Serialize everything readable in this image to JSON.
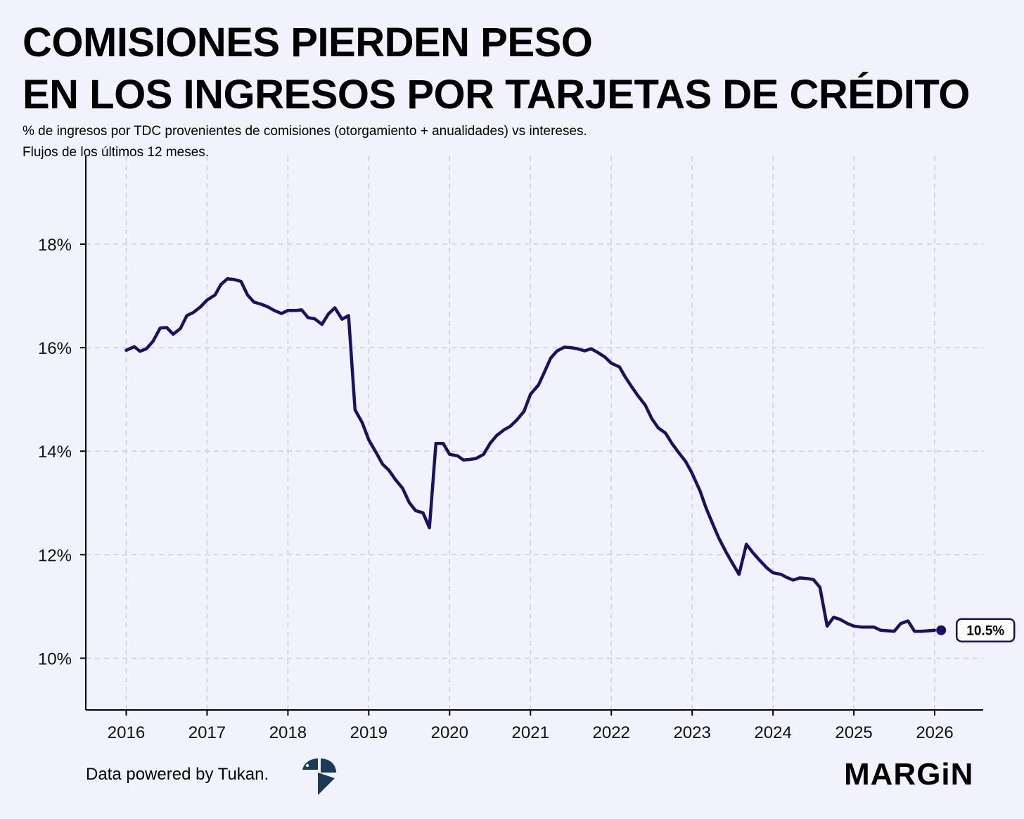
{
  "title": {
    "line1": "COMISIONES PIERDEN PESO",
    "line2": "EN LOS INGRESOS POR TARJETAS DE CRÉDITO"
  },
  "subtitle": {
    "line1": "% de ingresos por TDC provenientes de comisiones (otorgamiento + anualidades) vs intereses.",
    "line2": "Flujos de los últimos 12 meses."
  },
  "footer": {
    "credit": "Data powered by Tukan.",
    "brand": "MARGiN"
  },
  "colors": {
    "background": "#f2f2fc",
    "line": "#1c1060",
    "grid": "#c9cbf2",
    "axis": "#000000"
  },
  "chart_data": {
    "type": "line",
    "title": "",
    "xlabel": "",
    "ylabel": "",
    "xlim": [
      2015.5,
      2026.6
    ],
    "ylim": [
      9,
      19.7
    ],
    "x_ticks": [
      2016,
      2017,
      2018,
      2019,
      2020,
      2021,
      2022,
      2023,
      2024,
      2025,
      2026
    ],
    "y_ticks": [
      10,
      12,
      14,
      16,
      18
    ],
    "y_tick_labels": [
      "10%",
      "12%",
      "14%",
      "16%",
      "18%"
    ],
    "grid": true,
    "end_label": "10.5%",
    "end_point": {
      "x": 2026.08,
      "y": 10.54
    },
    "series": [
      {
        "x": [
          2016.0,
          2016.1,
          2016.17,
          2016.25,
          2016.33,
          2016.42,
          2016.5,
          2016.58,
          2016.67,
          2016.75,
          2016.83,
          2016.92,
          2017.0,
          2017.1,
          2017.17,
          2017.25,
          2017.33,
          2017.42,
          2017.5,
          2017.58,
          2017.67,
          2017.75,
          2017.83,
          2017.92,
          2018.0,
          2018.1,
          2018.17,
          2018.25,
          2018.33,
          2018.42,
          2018.5,
          2018.58,
          2018.67,
          2018.75,
          2018.83,
          2018.92,
          2019.0,
          2019.1,
          2019.17,
          2019.25,
          2019.33,
          2019.42,
          2019.5,
          2019.58,
          2019.67,
          2019.75,
          2019.83,
          2019.92,
          2020.0,
          2020.1,
          2020.17,
          2020.25,
          2020.33,
          2020.42,
          2020.5,
          2020.58,
          2020.67,
          2020.75,
          2020.83,
          2020.92,
          2021.0,
          2021.1,
          2021.17,
          2021.25,
          2021.33,
          2021.42,
          2021.5,
          2021.58,
          2021.67,
          2021.75,
          2021.83,
          2021.92,
          2022.0,
          2022.1,
          2022.17,
          2022.25,
          2022.33,
          2022.42,
          2022.5,
          2022.58,
          2022.67,
          2022.75,
          2022.83,
          2022.92,
          2023.0,
          2023.1,
          2023.17,
          2023.25,
          2023.33,
          2023.42,
          2023.5,
          2023.58,
          2023.67,
          2023.75,
          2023.83,
          2023.92,
          2024.0,
          2024.1,
          2024.17,
          2024.25,
          2024.33,
          2024.42,
          2024.5,
          2024.58,
          2024.67,
          2024.75,
          2024.83,
          2024.92,
          2025.0,
          2025.1,
          2025.17,
          2025.25,
          2025.33,
          2025.42,
          2025.5,
          2025.58,
          2025.67,
          2025.75,
          2025.83,
          2025.92,
          2026.0
        ],
        "values": [
          15.95,
          16.02,
          15.93,
          15.98,
          16.12,
          16.38,
          16.39,
          16.26,
          16.37,
          16.62,
          16.68,
          16.79,
          16.92,
          17.02,
          17.22,
          17.33,
          17.32,
          17.28,
          17.02,
          16.88,
          16.84,
          16.79,
          16.72,
          16.66,
          16.72,
          16.72,
          16.73,
          16.58,
          16.56,
          16.45,
          16.65,
          16.77,
          16.55,
          16.62,
          14.8,
          14.55,
          14.22,
          13.95,
          13.75,
          13.63,
          13.45,
          13.28,
          13.01,
          12.85,
          12.81,
          12.52,
          14.15,
          14.15,
          13.94,
          13.91,
          13.83,
          13.84,
          13.86,
          13.94,
          14.15,
          14.3,
          14.41,
          14.48,
          14.6,
          14.77,
          15.1,
          15.28,
          15.52,
          15.8,
          15.94,
          16.01,
          16.0,
          15.98,
          15.94,
          15.98,
          15.91,
          15.82,
          15.7,
          15.63,
          15.44,
          15.25,
          15.07,
          14.89,
          14.63,
          14.45,
          14.35,
          14.15,
          13.98,
          13.8,
          13.57,
          13.22,
          12.91,
          12.61,
          12.32,
          12.05,
          11.83,
          11.62,
          12.2,
          12.04,
          11.9,
          11.75,
          11.65,
          11.62,
          11.56,
          11.51,
          11.55,
          11.54,
          11.52,
          11.37,
          10.62,
          10.79,
          10.75,
          10.67,
          10.62,
          10.6,
          10.6,
          10.6,
          10.54,
          10.53,
          10.52,
          10.67,
          10.72,
          10.52,
          10.52,
          10.53,
          10.54
        ]
      }
    ]
  }
}
